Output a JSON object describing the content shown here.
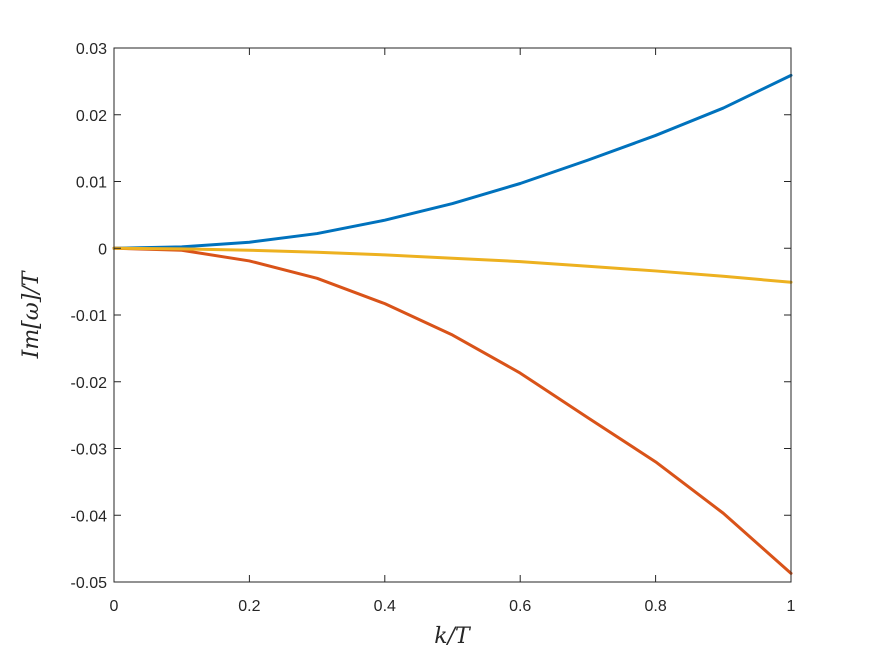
{
  "chart_data": {
    "type": "line",
    "title": "",
    "xlabel": "k/T",
    "ylabel": "Im[ω]/T",
    "xlim": [
      0,
      1
    ],
    "ylim": [
      -0.05,
      0.03
    ],
    "grid": false,
    "legend": "none",
    "x_ticks": [
      0,
      0.2,
      0.4,
      0.6,
      0.8,
      1
    ],
    "x_tick_labels": [
      "0",
      "0.2",
      "0.4",
      "0.6",
      "0.8",
      "1"
    ],
    "y_ticks": [
      -0.05,
      -0.04,
      -0.03,
      -0.02,
      -0.01,
      0,
      0.01,
      0.02,
      0.03
    ],
    "y_tick_labels": [
      "-0.05",
      "-0.04",
      "-0.03",
      "-0.02",
      "-0.01",
      "0",
      "0.01",
      "0.02",
      "0.03"
    ],
    "x": [
      0,
      0.1,
      0.2,
      0.3,
      0.4,
      0.5,
      0.6,
      0.7,
      0.8,
      0.9,
      1.0
    ],
    "series": [
      {
        "color": "#0072BD",
        "values": [
          0,
          0.0002,
          0.0009,
          0.0022,
          0.0042,
          0.0067,
          0.0097,
          0.0132,
          0.0169,
          0.021,
          0.0259
        ]
      },
      {
        "color": "#D95319",
        "values": [
          0,
          -0.0003,
          -0.0019,
          -0.0045,
          -0.0083,
          -0.013,
          -0.0187,
          -0.0254,
          -0.032,
          -0.0397,
          -0.0487
        ]
      },
      {
        "color": "#EDB120",
        "values": [
          0,
          -0.0001,
          -0.0003,
          -0.0006,
          -0.001,
          -0.0015,
          -0.002,
          -0.0027,
          -0.0034,
          -0.0042,
          -0.0051
        ]
      }
    ]
  }
}
